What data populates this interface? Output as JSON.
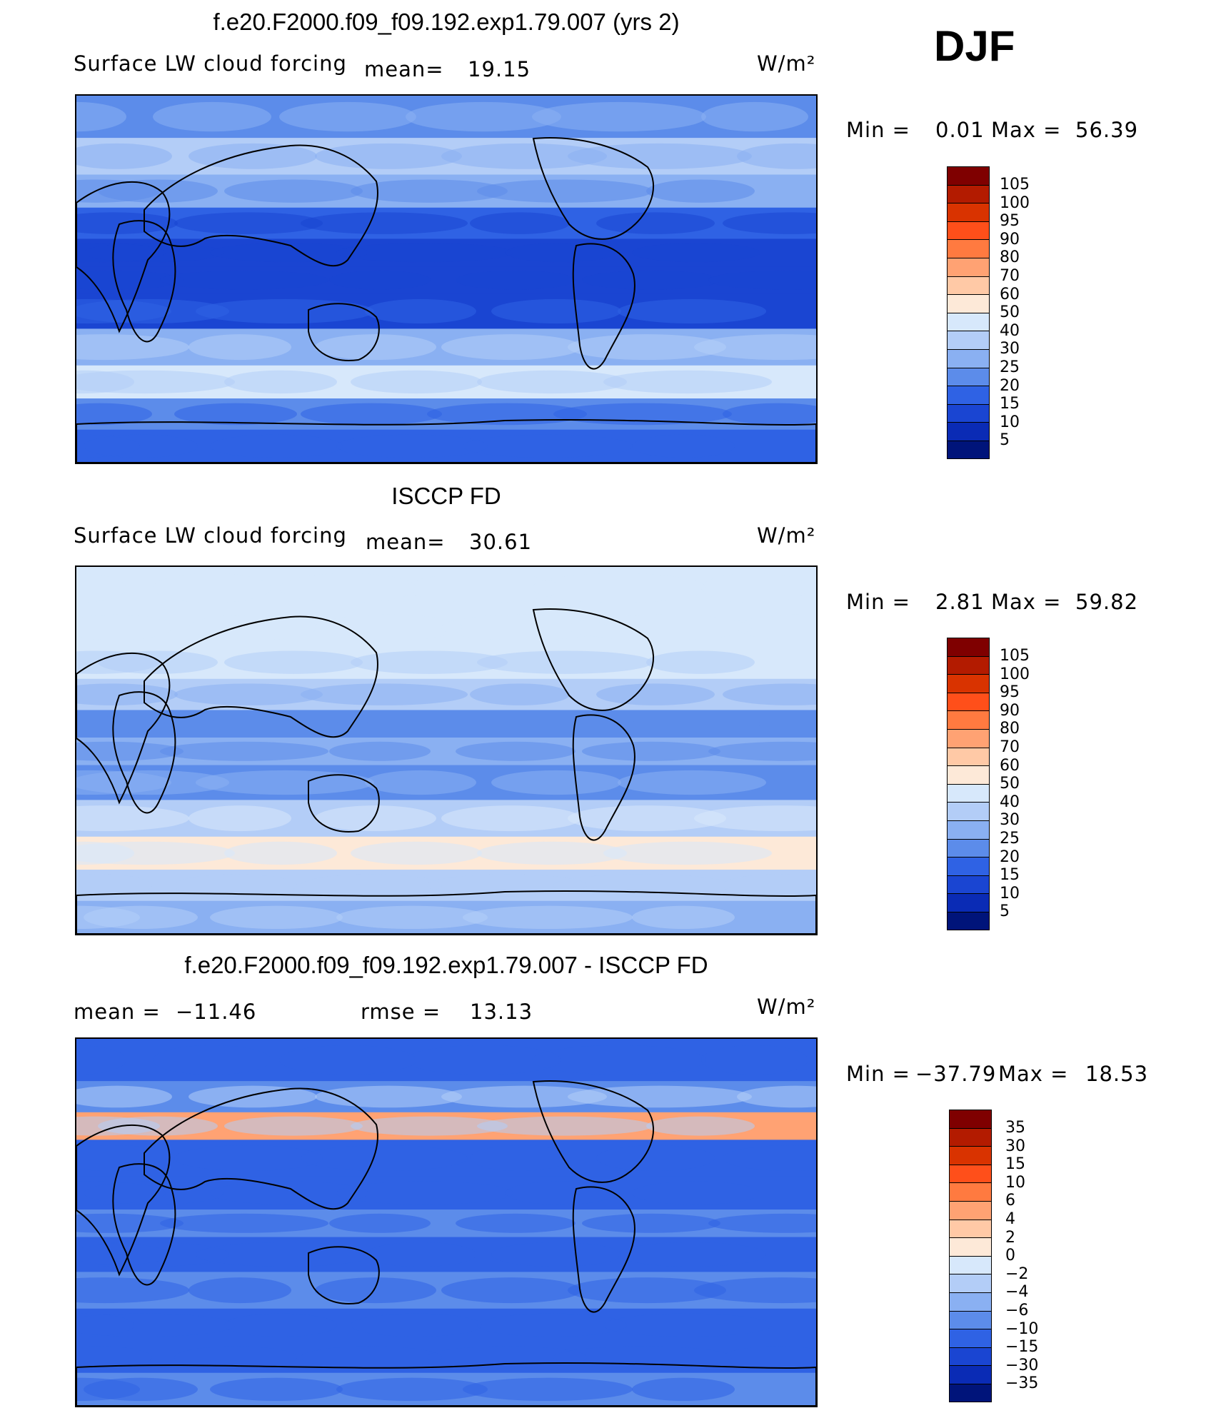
{
  "season": "DJF",
  "panels": [
    {
      "title": "f.e20.F2000.f09_f09.192.exp1.79.007 (yrs 2)",
      "variable": "Surface LW cloud forcing",
      "mean_label": "mean=",
      "mean": "19.15",
      "units": "W/m²",
      "min_label": "Min =",
      "min": "0.01",
      "max_label": "Max =",
      "max": "56.39",
      "colorbar_labels": [
        "105",
        "100",
        "95",
        "90",
        "80",
        "70",
        "60",
        "50",
        "40",
        "30",
        "25",
        "20",
        "15",
        "10",
        "5"
      ]
    },
    {
      "title": "ISCCP FD",
      "variable": "Surface LW cloud forcing",
      "mean_label": "mean=",
      "mean": "30.61",
      "units": "W/m²",
      "min_label": "Min =",
      "min": "2.81",
      "max_label": "Max =",
      "max": "59.82",
      "colorbar_labels": [
        "105",
        "100",
        "95",
        "90",
        "80",
        "70",
        "60",
        "50",
        "40",
        "30",
        "25",
        "20",
        "15",
        "10",
        "5"
      ]
    },
    {
      "title": "f.e20.F2000.f09_f09.192.exp1.79.007 - ISCCP FD",
      "mean_label": "mean =",
      "mean": "−11.46",
      "rmse_label": "rmse =",
      "rmse": "13.13",
      "units": "W/m²",
      "min_label": "Min =",
      "min": "−37.79",
      "max_label": "Max =",
      "max": "18.53",
      "colorbar_labels": [
        "35",
        "30",
        "15",
        "10",
        "6",
        "4",
        "2",
        "0",
        "−2",
        "−4",
        "−6",
        "−10",
        "−15",
        "−30",
        "−35"
      ]
    }
  ],
  "colorbar_colors": [
    "#7f0000",
    "#b31b00",
    "#d93300",
    "#ff4f1a",
    "#ff7a40",
    "#ffa273",
    "#ffc9a6",
    "#fde9d8",
    "#d7e8fb",
    "#b3cdf7",
    "#8ab0f2",
    "#5c8cea",
    "#2f62e4",
    "#1a45d2",
    "#0a2bb5",
    "#00147a"
  ],
  "chart_data": [
    {
      "type": "heatmap",
      "title": "f.e20.F2000.f09_f09.192.exp1.79.007 (yrs 2)",
      "subtitle": "Surface LW cloud forcing",
      "units": "W/m2",
      "mean": 19.15,
      "min": 0.01,
      "max": 56.39,
      "contour_levels": [
        5,
        10,
        15,
        20,
        25,
        30,
        40,
        50,
        60,
        70,
        80,
        90,
        95,
        100,
        105
      ],
      "zonal_bands": [
        {
          "lat": "80N",
          "value": 22
        },
        {
          "lat": "60N",
          "value": 30
        },
        {
          "lat": "45N",
          "value": 28
        },
        {
          "lat": "30N",
          "value": 15
        },
        {
          "lat": "15N",
          "value": 10
        },
        {
          "lat": "0",
          "value": 14
        },
        {
          "lat": "15S",
          "value": 12
        },
        {
          "lat": "35S",
          "value": 25
        },
        {
          "lat": "50S",
          "value": 42
        },
        {
          "lat": "65S",
          "value": 22
        },
        {
          "lat": "80S",
          "value": 15
        }
      ]
    },
    {
      "type": "heatmap",
      "title": "ISCCP FD",
      "subtitle": "Surface LW cloud forcing",
      "units": "W/m2",
      "mean": 30.61,
      "min": 2.81,
      "max": 59.82,
      "contour_levels": [
        5,
        10,
        15,
        20,
        25,
        30,
        40,
        50,
        60,
        70,
        80,
        90,
        95,
        100,
        105
      ],
      "zonal_bands": [
        {
          "lat": "80N",
          "value": 48
        },
        {
          "lat": "60N",
          "value": 42
        },
        {
          "lat": "45N",
          "value": 40
        },
        {
          "lat": "30N",
          "value": 30
        },
        {
          "lat": "15N",
          "value": 22
        },
        {
          "lat": "0",
          "value": 25
        },
        {
          "lat": "15S",
          "value": 22
        },
        {
          "lat": "35S",
          "value": 35
        },
        {
          "lat": "50S",
          "value": 52
        },
        {
          "lat": "65S",
          "value": 38
        },
        {
          "lat": "80S",
          "value": 25
        }
      ]
    },
    {
      "type": "heatmap",
      "title": "f.e20.F2000.f09_f09.192.exp1.79.007 - ISCCP FD",
      "units": "W/m2",
      "mean": -11.46,
      "rmse": 13.13,
      "min": -37.79,
      "max": 18.53,
      "contour_levels": [
        -35,
        -30,
        -15,
        -10,
        -6,
        -4,
        -2,
        0,
        2,
        4,
        6,
        10,
        15,
        30,
        35
      ],
      "zonal_bands": [
        {
          "lat": "80N",
          "value": -12
        },
        {
          "lat": "60N",
          "value": -10
        },
        {
          "lat": "50N",
          "value": 4
        },
        {
          "lat": "35N",
          "value": -12
        },
        {
          "lat": "15N",
          "value": -14
        },
        {
          "lat": "0",
          "value": -10
        },
        {
          "lat": "15S",
          "value": -12
        },
        {
          "lat": "35S",
          "value": -10
        },
        {
          "lat": "50S",
          "value": -12
        },
        {
          "lat": "65S",
          "value": -15
        },
        {
          "lat": "80S",
          "value": -10
        }
      ]
    }
  ]
}
